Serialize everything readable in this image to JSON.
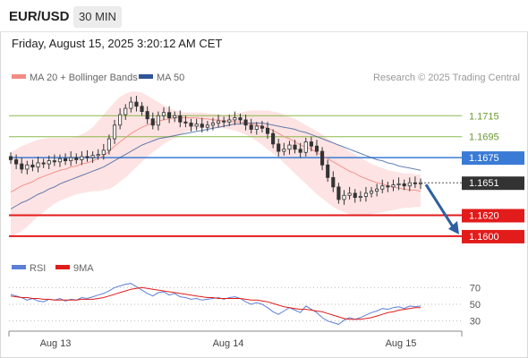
{
  "header": {
    "symbol": "EUR/USD",
    "timeframe": "30 MIN",
    "timestamp": "Friday, August 15, 2025 3:20:12 AM CET"
  },
  "legend": {
    "ma20_label": "MA 20 + Bollinger Bands",
    "ma50_label": "MA 50",
    "credit": "Research © 2025 Trading Central",
    "rsi_label": "RSI",
    "rsi_ma_label": "9MA"
  },
  "colors": {
    "ma20": "#f28b82",
    "ma50": "#2f5597",
    "band_fill": "#fde0e0",
    "candle": "#333333",
    "resistance_green": "#8ab84a",
    "pivot_blue": "#3a7bd5",
    "support_red": "#e21b1b",
    "last_price_bg": "#333333",
    "arrow": "#2f5f9e",
    "rsi": "#5b7fd6",
    "rsi_ma": "#e21b1b"
  },
  "chart_data": [
    {
      "type": "candlestick",
      "title": "EUR/USD 30 MIN",
      "x_ticks": [
        "Aug 13",
        "Aug 14",
        "Aug 15"
      ],
      "ylim": [
        1.1582,
        1.174
      ],
      "levels": [
        {
          "label": "1.1715",
          "value": 1.1715,
          "kind": "resistance",
          "color": "#8ab84a"
        },
        {
          "label": "1.1695",
          "value": 1.1695,
          "kind": "resistance",
          "color": "#8ab84a"
        },
        {
          "label": "1.1675",
          "value": 1.1675,
          "kind": "pivot",
          "color": "#3a7bd5"
        },
        {
          "label": "1.1651",
          "value": 1.1651,
          "kind": "last",
          "color": "#333333"
        },
        {
          "label": "1.1620",
          "value": 1.162,
          "kind": "support",
          "color": "#e21b1b"
        },
        {
          "label": "1.1600",
          "value": 1.16,
          "kind": "support",
          "color": "#e21b1b"
        }
      ],
      "close": [
        1.1673,
        1.1669,
        1.1664,
        1.1668,
        1.1666,
        1.167,
        1.1669,
        1.1672,
        1.1671,
        1.1674,
        1.1672,
        1.1675,
        1.1673,
        1.1676,
        1.1675,
        1.1677,
        1.1678,
        1.1682,
        1.1693,
        1.1706,
        1.1716,
        1.1722,
        1.1728,
        1.1724,
        1.1719,
        1.1712,
        1.1706,
        1.1715,
        1.1718,
        1.1713,
        1.1715,
        1.1709,
        1.1708,
        1.1705,
        1.1707,
        1.1704,
        1.1706,
        1.1708,
        1.171,
        1.1709,
        1.1711,
        1.1713,
        1.1711,
        1.1706,
        1.1702,
        1.1705,
        1.1703,
        1.1698,
        1.1688,
        1.1681,
        1.1683,
        1.1687,
        1.1683,
        1.168,
        1.169,
        1.1686,
        1.1681,
        1.1668,
        1.1656,
        1.1647,
        1.1635,
        1.1639,
        1.1641,
        1.1637,
        1.1638,
        1.1641,
        1.1643,
        1.1645,
        1.1648,
        1.1647,
        1.1649,
        1.165,
        1.1648,
        1.1651,
        1.165,
        1.1651
      ],
      "ma20": [
        1.1642,
        1.1645,
        1.1648,
        1.165,
        1.1652,
        1.1655,
        1.1657,
        1.1659,
        1.1661,
        1.1663,
        1.1664,
        1.1666,
        1.1667,
        1.1669,
        1.167,
        1.1672,
        1.1674,
        1.1677,
        1.1681,
        1.1686,
        1.169,
        1.1694,
        1.1698,
        1.1701,
        1.1704,
        1.1706,
        1.1708,
        1.171,
        1.1711,
        1.1712,
        1.1713,
        1.1713,
        1.1713,
        1.1713,
        1.1713,
        1.1712,
        1.1712,
        1.1711,
        1.1711,
        1.171,
        1.171,
        1.1709,
        1.1709,
        1.1708,
        1.1707,
        1.1706,
        1.1705,
        1.1703,
        1.1701,
        1.1698,
        1.1695,
        1.1693,
        1.169,
        1.1687,
        1.1685,
        1.1683,
        1.168,
        1.1677,
        1.1674,
        1.1671,
        1.1668,
        1.1665,
        1.1662,
        1.166,
        1.1657,
        1.1655,
        1.1653,
        1.1651,
        1.165,
        1.1648,
        1.1647,
        1.1646,
        1.1645,
        1.1644,
        1.1644,
        1.1643
      ],
      "ma50": [
        1.1626,
        1.1629,
        1.1632,
        1.1634,
        1.1637,
        1.164,
        1.1642,
        1.1645,
        1.1647,
        1.165,
        1.1652,
        1.1654,
        1.1656,
        1.1658,
        1.166,
        1.1662,
        1.1664,
        1.1666,
        1.1669,
        1.1672,
        1.1675,
        1.1678,
        1.1681,
        1.1684,
        1.1687,
        1.1689,
        1.1691,
        1.1693,
        1.1694,
        1.1695,
        1.1696,
        1.1697,
        1.1698,
        1.1699,
        1.17,
        1.1701,
        1.1702,
        1.1703,
        1.1704,
        1.1705,
        1.1706,
        1.1707,
        1.1707,
        1.1708,
        1.1708,
        1.1708,
        1.1708,
        1.1707,
        1.1706,
        1.1705,
        1.1704,
        1.1703,
        1.1702,
        1.17,
        1.1699,
        1.1697,
        1.1695,
        1.1693,
        1.1691,
        1.1689,
        1.1687,
        1.1685,
        1.1683,
        1.1681,
        1.1679,
        1.1677,
        1.1675,
        1.1673,
        1.1672,
        1.167,
        1.1669,
        1.1667,
        1.1666,
        1.1665,
        1.1664,
        1.1663
      ],
      "bb_upper": [
        1.168,
        1.1683,
        1.1686,
        1.1688,
        1.169,
        1.1692,
        1.1693,
        1.1694,
        1.1694,
        1.1694,
        1.1694,
        1.1694,
        1.1695,
        1.1697,
        1.17,
        1.1704,
        1.171,
        1.1716,
        1.1722,
        1.1728,
        1.1733,
        1.1736,
        1.1738,
        1.1738,
        1.1737,
        1.1734,
        1.1731,
        1.1728,
        1.1725,
        1.1722,
        1.172,
        1.1719,
        1.1718,
        1.1718,
        1.1718,
        1.1718,
        1.1717,
        1.1717,
        1.1716,
        1.1716,
        1.1716,
        1.1717,
        1.1718,
        1.1719,
        1.172,
        1.172,
        1.172,
        1.172,
        1.1719,
        1.1718,
        1.1716,
        1.1714,
        1.1712,
        1.1709,
        1.1706,
        1.1703,
        1.17,
        1.1697,
        1.1693,
        1.169,
        1.1687,
        1.1684,
        1.1681,
        1.1678,
        1.1675,
        1.1672,
        1.1669,
        1.1667,
        1.1665,
        1.1663,
        1.1662,
        1.1661,
        1.166,
        1.166,
        1.1659,
        1.1659
      ],
      "bb_lower": [
        1.16,
        1.1602,
        1.1605,
        1.1609,
        1.1614,
        1.1619,
        1.1623,
        1.1627,
        1.1631,
        1.1634,
        1.1636,
        1.1638,
        1.164,
        1.1641,
        1.1642,
        1.1643,
        1.1643,
        1.1644,
        1.1645,
        1.1648,
        1.1652,
        1.1656,
        1.1661,
        1.1666,
        1.1671,
        1.1676,
        1.168,
        1.1684,
        1.1688,
        1.1691,
        1.1694,
        1.1697,
        1.1699,
        1.1701,
        1.1702,
        1.1703,
        1.1703,
        1.1703,
        1.1703,
        1.1703,
        1.1702,
        1.1701,
        1.1699,
        1.1697,
        1.1694,
        1.1691,
        1.1687,
        1.1683,
        1.1679,
        1.1675,
        1.167,
        1.1665,
        1.166,
        1.1655,
        1.165,
        1.1645,
        1.164,
        1.1636,
        1.1632,
        1.1628,
        1.1625,
        1.1623,
        1.1621,
        1.162,
        1.162,
        1.162,
        1.1621,
        1.1622,
        1.1623,
        1.1624,
        1.1625,
        1.1626,
        1.1627,
        1.1627,
        1.1628,
        1.1628
      ],
      "projection": {
        "from": 1.1651,
        "to": 1.16
      }
    },
    {
      "type": "line",
      "title": "RSI",
      "yticks": [
        70,
        50,
        30
      ],
      "ylim": [
        20,
        80
      ],
      "series": [
        {
          "name": "RSI",
          "values": [
            62,
            60,
            58,
            55,
            57,
            54,
            53,
            56,
            55,
            57,
            54,
            56,
            55,
            58,
            57,
            59,
            61,
            63,
            66,
            70,
            72,
            74,
            75,
            71,
            67,
            63,
            60,
            64,
            65,
            61,
            63,
            59,
            58,
            56,
            57,
            55,
            56,
            57,
            58,
            56,
            58,
            59,
            57,
            53,
            50,
            52,
            50,
            46,
            41,
            38,
            42,
            46,
            43,
            40,
            48,
            44,
            40,
            34,
            30,
            28,
            26,
            31,
            34,
            32,
            34,
            37,
            40,
            42,
            45,
            44,
            46,
            47,
            45,
            48,
            47,
            48
          ]
        },
        {
          "name": "9MA",
          "values": [
            60,
            59,
            58,
            58,
            57,
            57,
            56,
            56,
            55,
            55,
            55,
            55,
            55,
            56,
            56,
            56,
            57,
            58,
            60,
            62,
            64,
            66,
            68,
            69,
            70,
            69,
            68,
            67,
            66,
            65,
            64,
            63,
            62,
            61,
            60,
            59,
            58,
            58,
            57,
            57,
            57,
            57,
            57,
            56,
            55,
            55,
            54,
            53,
            51,
            49,
            47,
            46,
            45,
            44,
            44,
            43,
            42,
            41,
            39,
            37,
            35,
            33,
            32,
            32,
            32,
            33,
            34,
            36,
            38,
            40,
            41,
            43,
            44,
            45,
            46,
            46
          ]
        }
      ]
    }
  ]
}
